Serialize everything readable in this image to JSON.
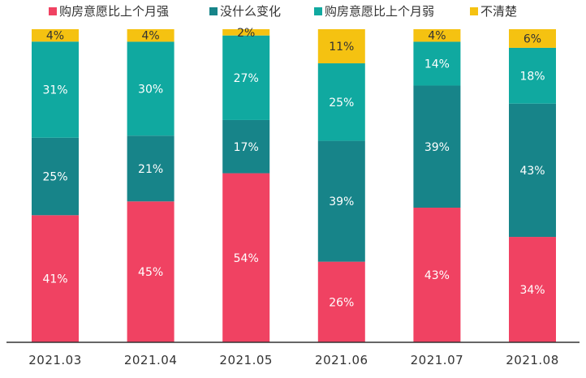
{
  "chart_data": {
    "type": "bar",
    "stacked": true,
    "normalized_100": true,
    "categories": [
      "2021.03",
      "2021.04",
      "2021.05",
      "2021.06",
      "2021.07",
      "2021.08"
    ],
    "series": [
      {
        "name": "购房意愿比上个月强",
        "color": "#F04262",
        "values": [
          41,
          45,
          54,
          26,
          43,
          34
        ]
      },
      {
        "name": "没什么变化",
        "color": "#178489",
        "values": [
          25,
          21,
          17,
          39,
          39,
          43
        ]
      },
      {
        "name": "购房意愿比上个月弱",
        "color": "#10A9A0",
        "values": [
          31,
          30,
          27,
          25,
          14,
          18
        ]
      },
      {
        "name": "不清楚",
        "color": "#F5C211",
        "values": [
          4,
          4,
          2,
          11,
          4,
          6
        ]
      }
    ],
    "data_labels": [
      [
        "41%",
        "45%",
        "54%",
        "26%",
        "43%",
        "34%"
      ],
      [
        "25%",
        "21%",
        "17%",
        "39%",
        "39%",
        "43%"
      ],
      [
        "31%",
        "30%",
        "27%",
        "25%",
        "14%",
        "18%"
      ],
      [
        "4%",
        "4%",
        "2%",
        "11%",
        "4%",
        "6%"
      ]
    ],
    "ylim": [
      0,
      100
    ],
    "legend_position": "top",
    "grid": false
  }
}
